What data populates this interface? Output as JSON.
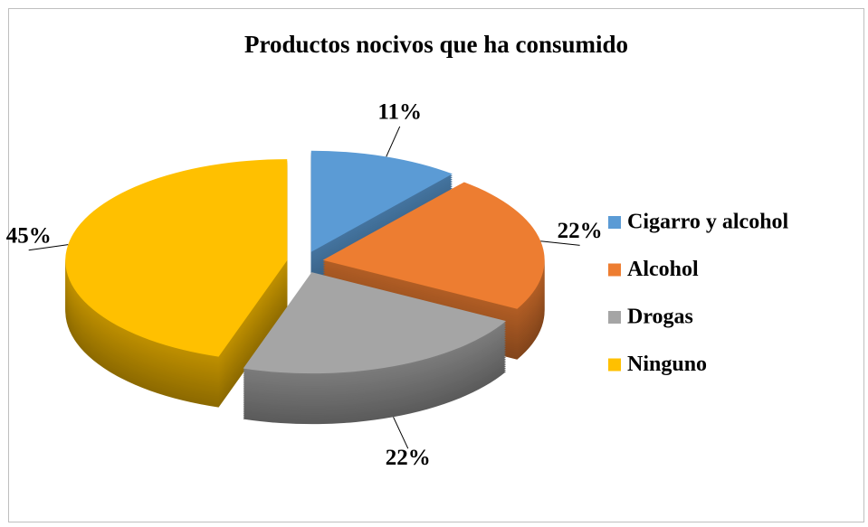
{
  "chart_data": {
    "type": "pie",
    "title": "Productos nocivos que ha consumido",
    "categories": [
      "Cigarro y alcohol",
      "Alcohol",
      "Drogas",
      "Ninguno"
    ],
    "values": [
      11,
      22,
      22,
      45
    ],
    "value_labels": [
      "11%",
      "22%",
      "22%",
      "45%"
    ],
    "colors": [
      "#5b9bd5",
      "#ed7d31",
      "#a5a5a5",
      "#ffc000"
    ],
    "legend": "right",
    "exploded": true,
    "three_d": true
  }
}
